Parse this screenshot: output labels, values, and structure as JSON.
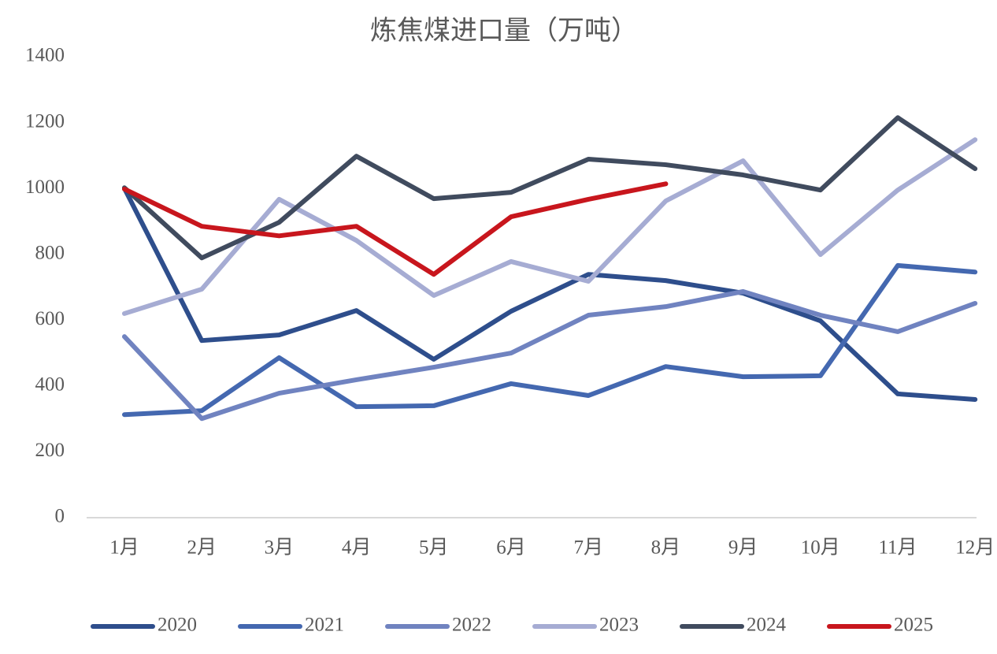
{
  "chart_data": {
    "type": "line",
    "title": "炼焦煤进口量（万吨）",
    "categories": [
      "1月",
      "2月",
      "3月",
      "4月",
      "5月",
      "6月",
      "7月",
      "8月",
      "9月",
      "10月",
      "11月",
      "12月"
    ],
    "series": [
      {
        "name": "2020",
        "color": "#2e4e8c",
        "values": [
          1000,
          538,
          555,
          629,
          481,
          627,
          739,
          720,
          682,
          598,
          376,
          359
        ]
      },
      {
        "name": "2021",
        "color": "#4468b0",
        "values": [
          313,
          325,
          486,
          337,
          340,
          407,
          371,
          459,
          428,
          431,
          766,
          746
        ]
      },
      {
        "name": "2022",
        "color": "#7083c0",
        "values": [
          550,
          301,
          378,
          419,
          457,
          500,
          615,
          641,
          687,
          615,
          565,
          651
        ]
      },
      {
        "name": "2023",
        "color": "#a6acd3",
        "values": [
          620,
          694,
          967,
          842,
          675,
          778,
          718,
          962,
          1084,
          799,
          995,
          1148
        ]
      },
      {
        "name": "2024",
        "color": "#404b5e",
        "values": [
          1002,
          789,
          897,
          1098,
          969,
          988,
          1089,
          1072,
          1041,
          995,
          1215,
          1060
        ]
      },
      {
        "name": "2025",
        "color": "#c8161d",
        "values": [
          998,
          885,
          856,
          885,
          739,
          914,
          967,
          1014,
          null,
          null,
          null,
          null
        ]
      }
    ],
    "ylim": [
      0,
      1400
    ],
    "yticks": [
      0,
      200,
      400,
      600,
      800,
      1000,
      1200,
      1400
    ],
    "grid": false,
    "legend": "bottom"
  }
}
